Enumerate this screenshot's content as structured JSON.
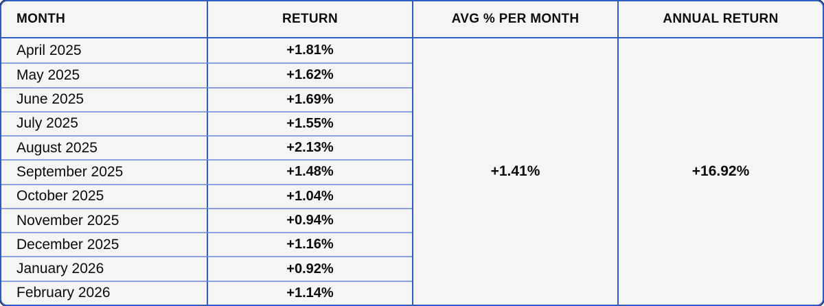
{
  "table": {
    "columns": [
      {
        "label": "MONTH"
      },
      {
        "label": "RETURN"
      },
      {
        "label": "AVG % PER MONTH"
      },
      {
        "label": "ANNUAL RETURN"
      }
    ],
    "rows": [
      {
        "month": "April 2025",
        "return": "+1.81%"
      },
      {
        "month": "May 2025",
        "return": "+1.62%"
      },
      {
        "month": "June 2025",
        "return": "+1.69%"
      },
      {
        "month": "July 2025",
        "return": "+1.55%"
      },
      {
        "month": "August 2025",
        "return": "+2.13%"
      },
      {
        "month": "September 2025",
        "return": "+1.48%"
      },
      {
        "month": "October 2025",
        "return": "+1.04%"
      },
      {
        "month": "November 2025",
        "return": "+0.94%"
      },
      {
        "month": "December 2025",
        "return": "+1.16%"
      },
      {
        "month": "January 2026",
        "return": "+0.92%"
      },
      {
        "month": "February 2026",
        "return": "+1.14%"
      }
    ],
    "avg_per_month": "+1.41%",
    "annual_return": "+16.92%"
  },
  "colors": {
    "border_strong": "#2e5cc5",
    "border_light": "#8aa2e2",
    "background": "#f5f5f6",
    "text": "#0b0b0d"
  },
  "chart_data": {
    "type": "table",
    "title": "",
    "columns": [
      "MONTH",
      "RETURN",
      "AVG % PER MONTH",
      "ANNUAL RETURN"
    ],
    "rows": [
      [
        "April 2025",
        "+1.81%"
      ],
      [
        "May 2025",
        "+1.62%"
      ],
      [
        "June 2025",
        "+1.69%"
      ],
      [
        "July 2025",
        "+1.55%"
      ],
      [
        "August 2025",
        "+2.13%"
      ],
      [
        "September 2025",
        "+1.48%"
      ],
      [
        "October 2025",
        "+1.04%"
      ],
      [
        "November 2025",
        "+0.94%"
      ],
      [
        "December 2025",
        "+1.16%"
      ],
      [
        "January 2026",
        "+0.92%"
      ],
      [
        "February 2026",
        "+1.14%"
      ]
    ],
    "monthly_returns_percent": [
      1.81,
      1.62,
      1.69,
      1.55,
      2.13,
      1.48,
      1.04,
      0.94,
      1.16,
      0.92,
      1.14
    ],
    "avg_percent_per_month": 1.41,
    "annual_return_percent": 16.92
  }
}
